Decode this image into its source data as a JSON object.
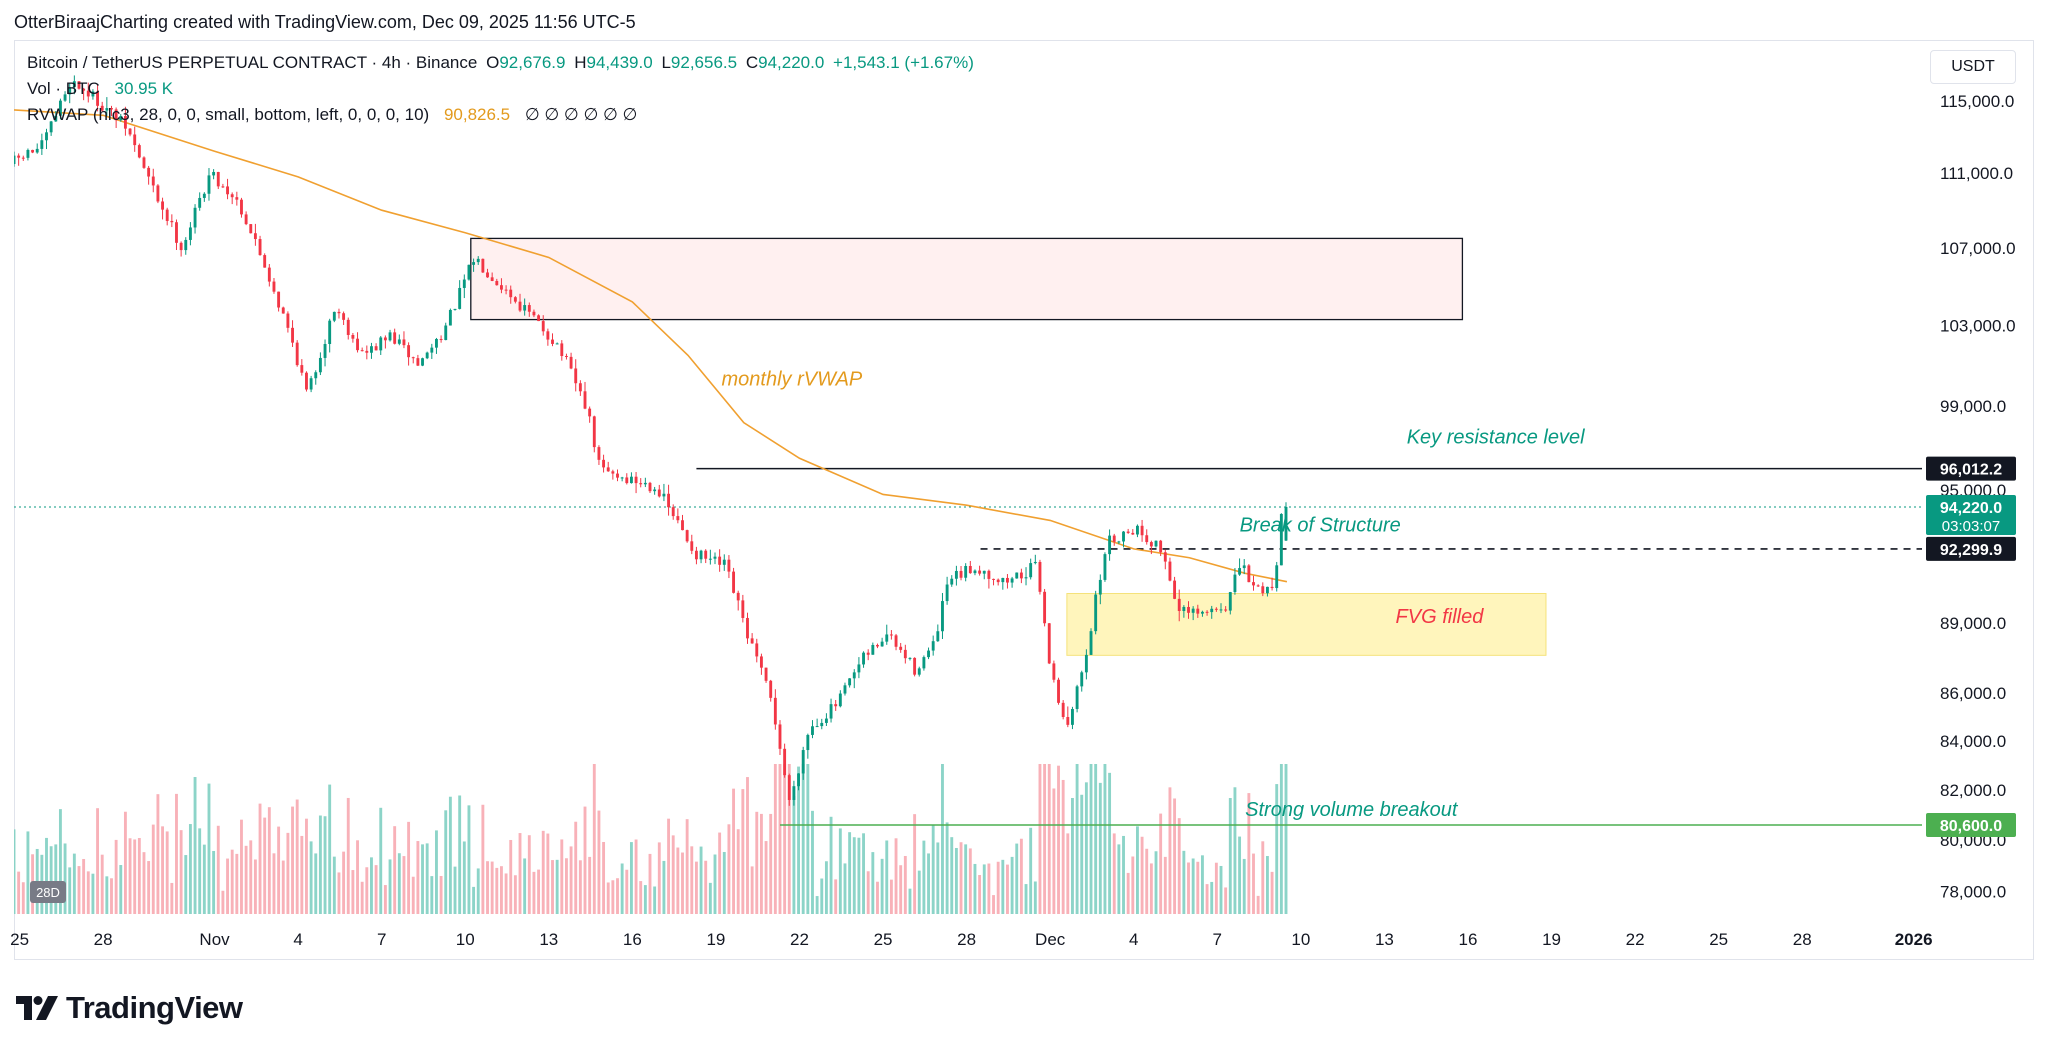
{
  "caption": "OtterBiraajCharting created with TradingView.com, Dec 09, 2025 11:56 UTC-5",
  "legend": {
    "symbol": "Bitcoin / TetherUS PERPETUAL CONTRACT · 4h · Binance",
    "o_label": "O",
    "o_value": "92,676.9",
    "h_label": "H",
    "h_value": "94,439.0",
    "l_label": "L",
    "l_value": "92,656.5",
    "c_label": "C",
    "c_value": "94,220.0",
    "change": "+1,543.1 (+1.67%)",
    "vol_label": "Vol · BTC",
    "vol_value": "30.95 K",
    "rvwap_label": "RVWAP (hlc3, 28, 0, 0, small, bottom, left, 0, 0, 0, 10)",
    "rvwap_value": "90,826.5",
    "rvwap_empty": "∅ ∅ ∅ ∅ ∅ ∅"
  },
  "currency": "USDT",
  "brand": "TradingView",
  "colors": {
    "up": "#089981",
    "down": "#f23645",
    "vwap": "#f0a030",
    "fvg": "#fff3b0",
    "supply": "#fff0f0",
    "support": "#4caf50"
  },
  "chart_data": {
    "type": "candlestick",
    "interval": "4h",
    "yscale": "log",
    "ylim": [
      77000,
      118500
    ],
    "price_ticks": [
      "115,000.0",
      "111,000.0",
      "107,000.0",
      "103,000.0",
      "99,000.0",
      "95,000.0",
      "89,000.0",
      "86,000.0",
      "84,000.0",
      "82,000.0",
      "80,000.0",
      "78,000.0"
    ],
    "price_tick_values": [
      115000,
      111000,
      107000,
      103000,
      99000,
      95000,
      89000,
      86000,
      84000,
      82000,
      80000,
      78000
    ],
    "x_ticks": [
      "25",
      "28",
      "Nov",
      "4",
      "7",
      "10",
      "13",
      "16",
      "19",
      "22",
      "25",
      "28",
      "Dec",
      "4",
      "7",
      "10",
      "13",
      "16",
      "19",
      "22",
      "25",
      "28",
      "2026"
    ],
    "x_tick_days": [
      -7,
      -4,
      0,
      3,
      6,
      9,
      12,
      15,
      18,
      21,
      24,
      27,
      30,
      33,
      36,
      39,
      42,
      45,
      48,
      51,
      54,
      57,
      61
    ],
    "x_range_days": [
      -7.2,
      61.3
    ],
    "last_candle_day": 38.5,
    "price_labels": [
      {
        "text": "96,012.2",
        "value": 96012.2,
        "style": "black"
      },
      {
        "text": "94,220.0",
        "value": 94220,
        "style": "green",
        "countdown": "03:03:07"
      },
      {
        "text": "92,299.9",
        "value": 92299.9,
        "style": "black"
      },
      {
        "text": "80,600.0",
        "value": 80600,
        "style": "support"
      }
    ],
    "anchors": [
      {
        "day": -7.2,
        "price": 111500
      },
      {
        "day": -6,
        "price": 112500
      },
      {
        "day": -5,
        "price": 116200
      },
      {
        "day": -4,
        "price": 115000
      },
      {
        "day": -3,
        "price": 113500
      },
      {
        "day": -2,
        "price": 110000
      },
      {
        "day": -1,
        "price": 107000
      },
      {
        "day": 0,
        "price": 111000
      },
      {
        "day": 1,
        "price": 109500
      },
      {
        "day": 2,
        "price": 106000
      },
      {
        "day": 3,
        "price": 102000
      },
      {
        "day": 3.5,
        "price": 99500
      },
      {
        "day": 4.5,
        "price": 104000
      },
      {
        "day": 5.5,
        "price": 101500
      },
      {
        "day": 6.5,
        "price": 102500
      },
      {
        "day": 7.5,
        "price": 101000
      },
      {
        "day": 8.5,
        "price": 103000
      },
      {
        "day": 9.5,
        "price": 106500
      },
      {
        "day": 10.5,
        "price": 105000
      },
      {
        "day": 11.5,
        "price": 103500
      },
      {
        "day": 12.5,
        "price": 102000
      },
      {
        "day": 13.5,
        "price": 99000
      },
      {
        "day": 14,
        "price": 96000
      },
      {
        "day": 15,
        "price": 95500
      },
      {
        "day": 16,
        "price": 95200
      },
      {
        "day": 17,
        "price": 93000
      },
      {
        "day": 17.5,
        "price": 92000
      },
      {
        "day": 18.5,
        "price": 91500
      },
      {
        "day": 19.3,
        "price": 88500
      },
      {
        "day": 20.2,
        "price": 85500
      },
      {
        "day": 20.8,
        "price": 81500
      },
      {
        "day": 21.5,
        "price": 84500
      },
      {
        "day": 22.5,
        "price": 85500
      },
      {
        "day": 23.5,
        "price": 87500
      },
      {
        "day": 24.3,
        "price": 88500
      },
      {
        "day": 25.3,
        "price": 87000
      },
      {
        "day": 26,
        "price": 88000
      },
      {
        "day": 26.5,
        "price": 90800
      },
      {
        "day": 27.5,
        "price": 91500
      },
      {
        "day": 28.5,
        "price": 90800
      },
      {
        "day": 29.7,
        "price": 91500
      },
      {
        "day": 30.2,
        "price": 86800
      },
      {
        "day": 30.8,
        "price": 84500
      },
      {
        "day": 31.5,
        "price": 88000
      },
      {
        "day": 32.2,
        "price": 92600
      },
      {
        "day": 33.2,
        "price": 93300
      },
      {
        "day": 34.2,
        "price": 92200
      },
      {
        "day": 34.8,
        "price": 89500
      },
      {
        "day": 35.5,
        "price": 89300
      },
      {
        "day": 36.5,
        "price": 89800
      },
      {
        "day": 37,
        "price": 91600
      },
      {
        "day": 37.5,
        "price": 90500
      },
      {
        "day": 38.2,
        "price": 90600
      },
      {
        "day": 38.5,
        "price": 94220
      }
    ],
    "rvwap": [
      {
        "day": -7.2,
        "price": 114500
      },
      {
        "day": -4,
        "price": 114200
      },
      {
        "day": 0,
        "price": 112200
      },
      {
        "day": 3,
        "price": 110800
      },
      {
        "day": 6,
        "price": 109000
      },
      {
        "day": 9,
        "price": 107800
      },
      {
        "day": 12,
        "price": 106500
      },
      {
        "day": 15,
        "price": 104200
      },
      {
        "day": 17,
        "price": 101500
      },
      {
        "day": 19,
        "price": 98200
      },
      {
        "day": 21,
        "price": 96500
      },
      {
        "day": 24,
        "price": 94800
      },
      {
        "day": 27,
        "price": 94300
      },
      {
        "day": 30,
        "price": 93600
      },
      {
        "day": 33,
        "price": 92300
      },
      {
        "day": 35,
        "price": 91900
      },
      {
        "day": 37,
        "price": 91200
      },
      {
        "day": 38.5,
        "price": 90826.5
      }
    ],
    "volume_scale_label": "28D",
    "levels": [
      {
        "name": "Key resistance level",
        "price": 96012.2,
        "from_day": 17.3,
        "style": "solid",
        "color": "#131722"
      },
      {
        "name": "Break of Structure",
        "price": 92299.9,
        "from_day": 27.5,
        "style": "dashed",
        "color": "#131722"
      },
      {
        "name": "Strong volume breakout",
        "price": 80600,
        "from_day": 20.3,
        "style": "solid",
        "color": "#4caf50"
      }
    ],
    "zones": [
      {
        "name": "supply",
        "from_day": 9.2,
        "to_day": 44.8,
        "top": 107500,
        "bottom": 103300
      },
      {
        "name": "FVG filled",
        "from_day": 30.6,
        "to_day": 47.8,
        "top": 90300,
        "bottom": 87600
      }
    ],
    "annotations": [
      {
        "text": "monthly rVWAP",
        "day": 18.2,
        "price": 100000,
        "color": "#e39a1d"
      },
      {
        "text": "Key resistance level",
        "day": 42.8,
        "price": 97200,
        "color": "#089981"
      },
      {
        "text": "Break of Structure",
        "day": 36.8,
        "price": 93100,
        "color": "#089981"
      },
      {
        "text": "FVG filled",
        "day": 42.4,
        "price": 89000,
        "color": "#f23645"
      },
      {
        "text": "Strong volume breakout",
        "day": 37.0,
        "price": 80950,
        "color": "#089981"
      }
    ]
  }
}
